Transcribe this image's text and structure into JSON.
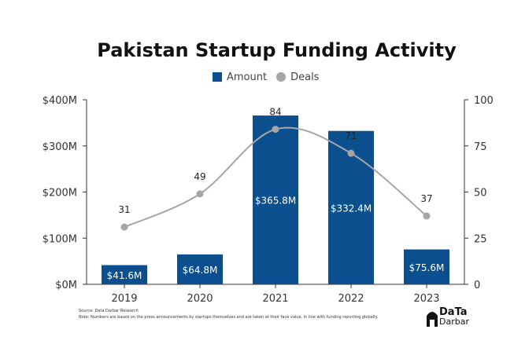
{
  "chart_data": {
    "type": "bar",
    "title": "Pakistan Startup Funding Activity",
    "categories": [
      "2019",
      "2020",
      "2021",
      "2022",
      "2023"
    ],
    "series": [
      {
        "name": "Amount",
        "type": "bar",
        "axis": "left",
        "values": [
          41.6,
          64.8,
          365.8,
          332.4,
          75.6
        ],
        "labels": [
          "$41.6M",
          "$64.8M",
          "$365.8M",
          "$332.4M",
          "$75.6M"
        ],
        "color": "#0b4f8f"
      },
      {
        "name": "Deals",
        "type": "line",
        "axis": "right",
        "values": [
          31,
          49,
          84,
          71,
          37
        ],
        "labels": [
          "31",
          "49",
          "84",
          "71",
          "37"
        ],
        "color": "#a6a6a6"
      }
    ],
    "y_left": {
      "ylim": [
        0,
        400
      ],
      "ticks": [
        0,
        100,
        200,
        300,
        400
      ],
      "tick_labels": [
        "$0M",
        "$100M",
        "$200M",
        "$300M",
        "$400M"
      ]
    },
    "y_right": {
      "ylim": [
        0,
        100
      ],
      "ticks": [
        0,
        25,
        50,
        75,
        100
      ],
      "tick_labels": [
        "0",
        "25",
        "50",
        "75",
        "100"
      ]
    },
    "legend": {
      "position": "top-center",
      "entries": [
        "Amount",
        "Deals"
      ]
    },
    "grid": false
  },
  "footer": {
    "source": "Source: Data Darbar Research",
    "note": "Note: Numbers are based on the press announcements by startups themselves and are taken at their face value, in line with funding reporting globally."
  },
  "logo": {
    "line1": "DaTa",
    "line2": "Darbar"
  }
}
